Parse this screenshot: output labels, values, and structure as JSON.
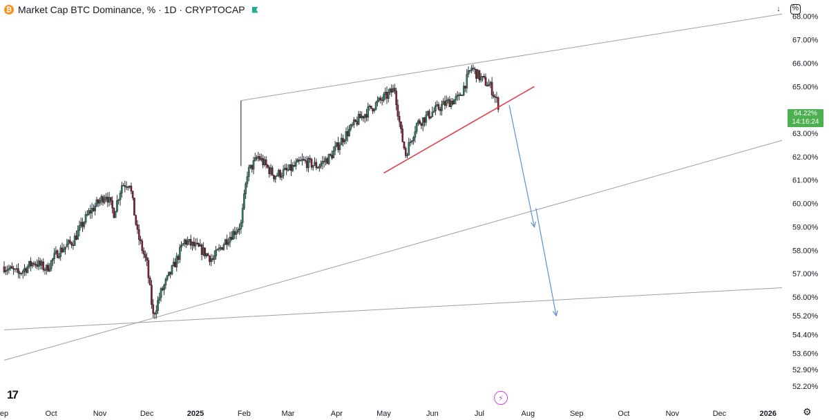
{
  "header": {
    "symbol_icon": "bitcoin-icon",
    "title": "Market Cap BTC Dominance, % · 1D · CRYPTOCAP"
  },
  "toolbar": {
    "download_icon": "arrow-down-icon",
    "fullscreen_icon": "fullscreen-icon",
    "percent_label": "%"
  },
  "price_badge": {
    "value": "64.22%",
    "countdown": "14:16:24",
    "color": "#4caf50"
  },
  "colors": {
    "up": "#131722",
    "down": "#131722",
    "support_line": "#e53945",
    "arrow": "#5b8fd6",
    "trend_line": "#9aa0a6"
  },
  "chart_data": {
    "type": "candlestick",
    "x_axis_ticks": [
      "ep",
      "Oct",
      "Nov",
      "Dec",
      "2025",
      "Feb",
      "Mar",
      "Apr",
      "May",
      "Jun",
      "Jul",
      "Aug",
      "Sep",
      "Oct",
      "Nov",
      "Dec",
      "2026"
    ],
    "y_axis_ticks": [
      "68.00%",
      "67.00%",
      "66.00%",
      "65.00%",
      "63.00%",
      "62.00%",
      "61.00%",
      "60.00%",
      "59.00%",
      "58.00%",
      "57.00%",
      "56.00%",
      "55.20%",
      "54.40%",
      "53.60%",
      "52.90%",
      "52.20%"
    ],
    "series": [
      {
        "name": "",
        "close_path": [
          [
            "2024-09-01",
            57.3
          ],
          [
            "2024-09-10",
            57.0
          ],
          [
            "2024-09-20",
            57.5
          ],
          [
            "2024-09-28",
            57.2
          ],
          [
            "2024-10-05",
            57.9
          ],
          [
            "2024-10-15",
            58.4
          ],
          [
            "2024-10-25",
            59.6
          ],
          [
            "2024-11-05",
            60.4
          ],
          [
            "2024-11-10",
            59.6
          ],
          [
            "2024-11-15",
            60.8
          ],
          [
            "2024-11-20",
            60.9
          ],
          [
            "2024-11-25",
            58.7
          ],
          [
            "2024-12-01",
            57.4
          ],
          [
            "2024-12-05",
            55.2
          ],
          [
            "2024-12-10",
            56.2
          ],
          [
            "2024-12-18",
            57.3
          ],
          [
            "2024-12-25",
            58.4
          ],
          [
            "2025-01-05",
            58.0
          ],
          [
            "2025-01-12",
            57.6
          ],
          [
            "2025-01-20",
            58.4
          ],
          [
            "2025-01-30",
            59.1
          ],
          [
            "2025-02-03",
            61.3
          ],
          [
            "2025-02-10",
            62.0
          ],
          [
            "2025-02-20",
            61.2
          ],
          [
            "2025-03-01",
            61.4
          ],
          [
            "2025-03-10",
            61.8
          ],
          [
            "2025-03-20",
            61.6
          ],
          [
            "2025-03-28",
            62.0
          ],
          [
            "2025-04-05",
            62.8
          ],
          [
            "2025-04-15",
            63.6
          ],
          [
            "2025-04-25",
            64.2
          ],
          [
            "2025-05-03",
            64.6
          ],
          [
            "2025-05-08",
            64.9
          ],
          [
            "2025-05-12",
            63.0
          ],
          [
            "2025-05-15",
            62.1
          ],
          [
            "2025-05-22",
            63.4
          ],
          [
            "2025-06-01",
            63.9
          ],
          [
            "2025-06-10",
            64.3
          ],
          [
            "2025-06-18",
            64.5
          ],
          [
            "2025-06-26",
            65.8
          ],
          [
            "2025-07-01",
            65.4
          ],
          [
            "2025-07-08",
            65.0
          ],
          [
            "2025-07-13",
            64.22
          ]
        ]
      }
    ],
    "annotations": [
      {
        "type": "trend_line",
        "name": "upper-channel",
        "from": [
          "2025-01-30",
          64.4
        ],
        "to": [
          "2026-01-10",
          68.1
        ]
      },
      {
        "type": "trend_line",
        "name": "lower-channel",
        "from": [
          "2024-09-01",
          53.3
        ],
        "to": [
          "2026-01-10",
          62.7
        ]
      },
      {
        "type": "trend_line",
        "name": "base-line",
        "from": [
          "2024-09-01",
          54.6
        ],
        "to": [
          "2026-01-10",
          56.4
        ]
      },
      {
        "type": "support_line",
        "from": [
          "2025-05-01",
          61.3
        ],
        "to": [
          "2025-08-05",
          65.0
        ]
      },
      {
        "type": "arrow",
        "from": [
          "2025-07-20",
          64.2
        ],
        "to": [
          "2025-08-05",
          59.0
        ]
      },
      {
        "type": "arrow",
        "from": [
          "2025-08-06",
          59.8
        ],
        "to": [
          "2025-08-19",
          55.2
        ]
      }
    ],
    "grid": false,
    "legend": "none"
  }
}
